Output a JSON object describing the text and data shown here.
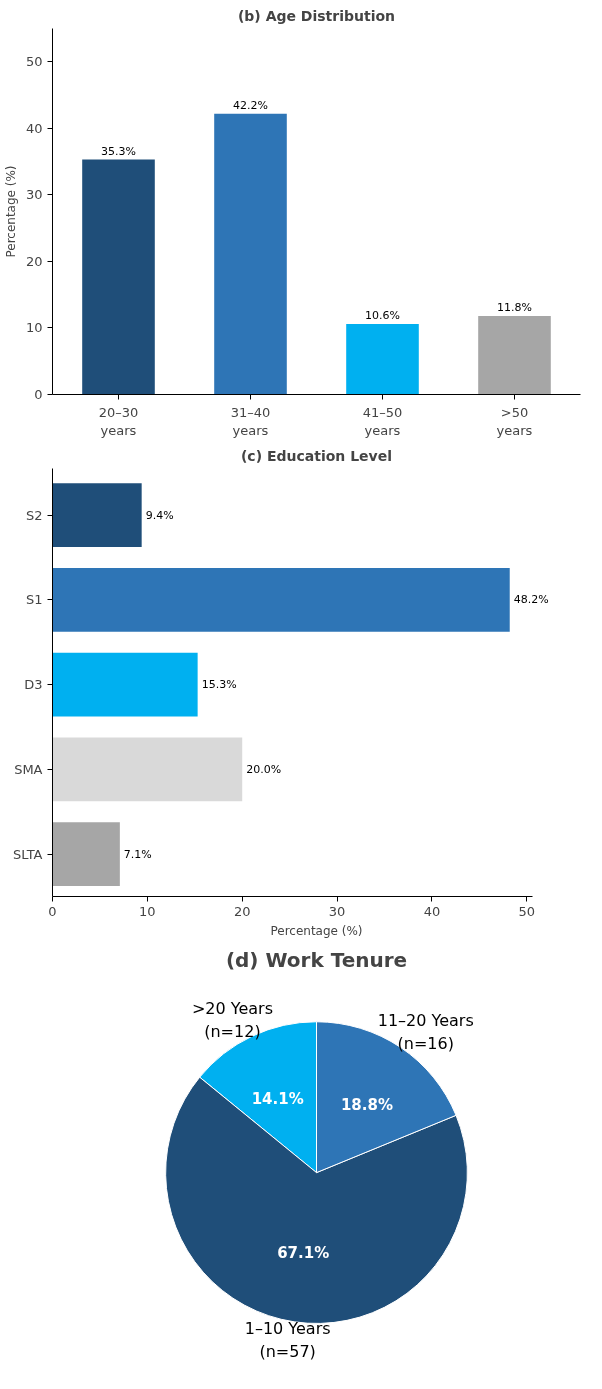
{
  "chart_data": [
    {
      "type": "bar",
      "title": "(b) Age Distribution",
      "ylabel": "Percentage (%)",
      "categories": [
        "20–30\nyears",
        "31–40\nyears",
        "41–50\nyears",
        ">50\nyears"
      ],
      "values": [
        35.3,
        42.2,
        10.6,
        11.8
      ],
      "colors": [
        "#1f4e79",
        "#2e75b6",
        "#00b0f0",
        "#a6a6a6"
      ],
      "value_labels": [
        "35.3%",
        "42.2%",
        "10.6%",
        "11.8%"
      ],
      "ylim": [
        0,
        55
      ],
      "yticks": [
        0,
        10,
        20,
        30,
        40,
        50
      ],
      "grid": false
    },
    {
      "type": "bar",
      "orientation": "horizontal",
      "title": "(c) Education Level",
      "xlabel": "Percentage (%)",
      "categories": [
        "S2",
        "S1",
        "D3",
        "SMA",
        "SLTA"
      ],
      "values": [
        9.4,
        48.2,
        15.3,
        20.0,
        7.1
      ],
      "colors": [
        "#1f4e79",
        "#2e75b6",
        "#00b0f0",
        "#d9d9d9",
        "#a6a6a6"
      ],
      "value_labels": [
        "9.4%",
        "48.2%",
        "15.3%",
        "20.0%",
        "7.1%"
      ],
      "xlim": [
        0,
        50.6
      ],
      "xticks": [
        0,
        10,
        20,
        30,
        40,
        50
      ],
      "grid": false
    },
    {
      "type": "pie",
      "title": "(d) Work Tenure",
      "categories": [
        ">20 Years\n(n=12)",
        "1–10 Years\n(n=57)",
        "11–20 Years\n(n=16)"
      ],
      "values": [
        14.1,
        67.1,
        18.8
      ],
      "colors": [
        "#00b0f0",
        "#1f4e79",
        "#2e75b6"
      ],
      "value_labels": [
        "14.1%",
        "67.1%",
        "18.8%"
      ]
    }
  ]
}
